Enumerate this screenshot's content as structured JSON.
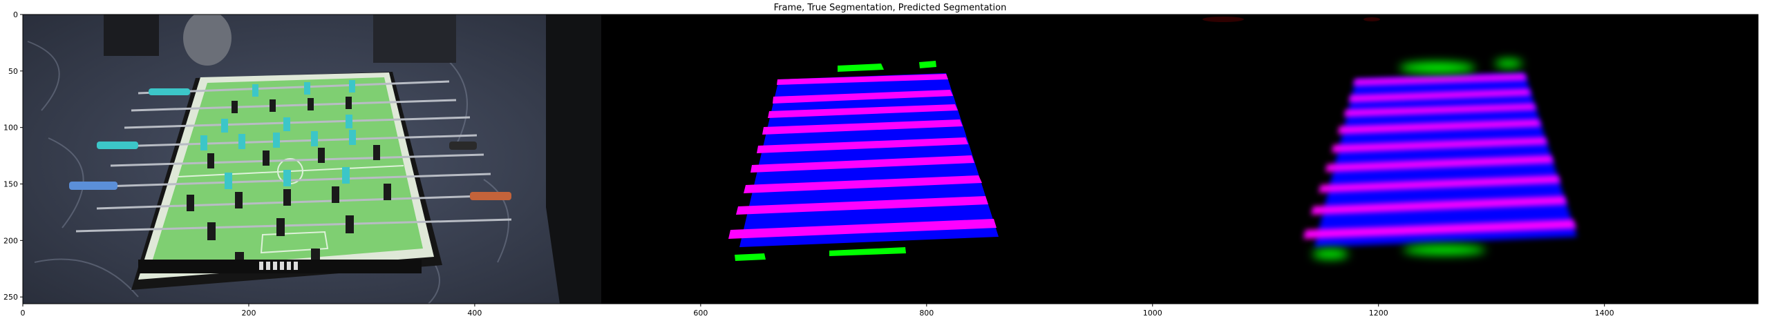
{
  "figure": {
    "title": "Frame, True Segmentation, Predicted Segmentation",
    "xlim": [
      0,
      1536
    ],
    "ylim": [
      256,
      0
    ],
    "x_ticks": [
      0,
      200,
      400,
      600,
      800,
      1000,
      1200,
      1400
    ],
    "y_ticks": [
      0,
      50,
      100,
      150,
      200,
      250
    ]
  },
  "panels": [
    {
      "name": "Frame",
      "x_range": [
        0,
        512
      ]
    },
    {
      "name": "True Segmentation",
      "x_range": [
        512,
        1024
      ]
    },
    {
      "name": "Predicted Segmentation",
      "x_range": [
        1024,
        1536
      ]
    }
  ],
  "colors": {
    "segmentation_background": "#000000",
    "class_table_surface": "#0000ff",
    "class_rods": "#ff00ff",
    "class_goals": "#00ff00",
    "photo_floor": "#3a4050",
    "photo_table_felt": "#7fcf72",
    "photo_player_teal": "#3cc6c8",
    "photo_player_black": "#1a1a1a"
  }
}
